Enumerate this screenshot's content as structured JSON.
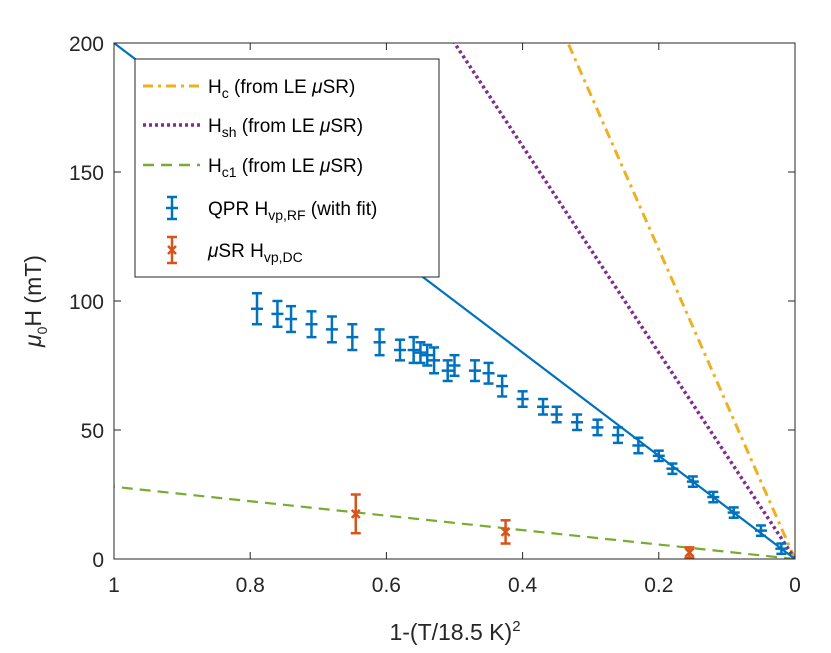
{
  "chart_data": {
    "type": "scatter",
    "x_axis": {
      "label_base": "1-(T/18.5 K)",
      "label_sup": "2",
      "range": [
        1,
        0
      ],
      "reversed": true,
      "ticks": [
        1,
        0.8,
        0.6,
        0.4,
        0.2,
        0
      ],
      "tick_labels": [
        "1",
        "0.8",
        "0.6",
        "0.4",
        "0.2",
        "0"
      ]
    },
    "y_axis": {
      "label_mu": "μ",
      "label_sub": "0",
      "label_rest": "H (mT)",
      "range": [
        0,
        200
      ],
      "ticks": [
        0,
        50,
        100,
        150,
        200
      ],
      "tick_labels": [
        "0",
        "50",
        "100",
        "150",
        "200"
      ]
    },
    "grid": false,
    "legend_position": "top-left",
    "lines": [
      {
        "id": "hc",
        "name_base": "H",
        "name_sub": "c",
        "name_rest": " (from LE ",
        "name_mu": "μ",
        "name_end": "SR)",
        "color": "#EDB120",
        "dash": "10,5,3,5",
        "slope": 600
      },
      {
        "id": "hsh",
        "name_base": "H",
        "name_sub": "sh",
        "name_rest": " (from LE ",
        "name_mu": "μ",
        "name_end": "SR)",
        "color": "#7E2F8E",
        "dash": "3,3",
        "slope": 400
      },
      {
        "id": "hc1",
        "name_base": "H",
        "name_sub": "c1",
        "name_rest": " (from LE ",
        "name_mu": "μ",
        "name_end": "SR)",
        "color": "#77AC30",
        "dash": "11,7",
        "slope": 28
      }
    ],
    "fit_line": {
      "color": "#0072BD",
      "slope": 200
    },
    "series": [
      {
        "id": "qpr",
        "name_base": "QPR H",
        "name_sub": "vp,RF",
        "name_rest": " (with fit)",
        "color": "#0072BD",
        "marker": "plus",
        "x": [
          0.79,
          0.76,
          0.74,
          0.71,
          0.68,
          0.65,
          0.61,
          0.58,
          0.56,
          0.55,
          0.54,
          0.53,
          0.51,
          0.5,
          0.47,
          0.45,
          0.43,
          0.4,
          0.37,
          0.35,
          0.32,
          0.29,
          0.26,
          0.23,
          0.2,
          0.18,
          0.15,
          0.12,
          0.09,
          0.05,
          0.02
        ],
        "y": [
          97,
          95,
          93,
          91,
          89,
          86,
          84,
          81,
          81,
          80,
          79,
          77,
          73,
          75,
          73,
          72,
          67,
          62,
          59,
          56,
          53,
          51,
          48,
          44,
          40,
          35,
          30,
          24,
          18,
          11,
          4
        ],
        "err": [
          6,
          5,
          5,
          5,
          5,
          5,
          5,
          4,
          5,
          4,
          4,
          5,
          4,
          4,
          4,
          4,
          4,
          3,
          3,
          3,
          3,
          3,
          3,
          3,
          2,
          2,
          2,
          2,
          2,
          2,
          2
        ]
      },
      {
        "id": "musr",
        "name_mu": "μ",
        "name_base": "SR H",
        "name_sub": "vp,DC",
        "color": "#D95319",
        "marker": "x",
        "x": [
          0.645,
          0.425,
          0.155
        ],
        "y": [
          17.5,
          10.5,
          2.5
        ],
        "err": [
          7.5,
          4.5,
          2
        ]
      }
    ]
  }
}
